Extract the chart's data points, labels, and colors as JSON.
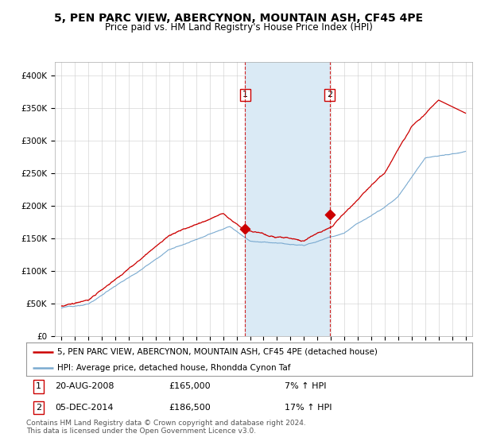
{
  "title": "5, PEN PARC VIEW, ABERCYNON, MOUNTAIN ASH, CF45 4PE",
  "subtitle": "Price paid vs. HM Land Registry's House Price Index (HPI)",
  "ylabel_ticks": [
    "£0",
    "£50K",
    "£100K",
    "£150K",
    "£200K",
    "£250K",
    "£300K",
    "£350K",
    "£400K"
  ],
  "ytick_values": [
    0,
    50000,
    100000,
    150000,
    200000,
    250000,
    300000,
    350000,
    400000
  ],
  "ylim": [
    0,
    420000
  ],
  "xlim_start": 1994.5,
  "xlim_end": 2025.5,
  "red_color": "#cc0000",
  "blue_color": "#7aaad0",
  "shade_color": "#daeaf5",
  "background_color": "#ffffff",
  "grid_color": "#cccccc",
  "purchase1_x": 2008.64,
  "purchase1_y": 165000,
  "purchase1_label": "1",
  "purchase1_date": "20-AUG-2008",
  "purchase1_price": "£165,000",
  "purchase1_hpi": "7% ↑ HPI",
  "purchase2_x": 2014.92,
  "purchase2_y": 186500,
  "purchase2_label": "2",
  "purchase2_date": "05-DEC-2014",
  "purchase2_price": "£186,500",
  "purchase2_hpi": "17% ↑ HPI",
  "legend_line1": "5, PEN PARC VIEW, ABERCYNON, MOUNTAIN ASH, CF45 4PE (detached house)",
  "legend_line2": "HPI: Average price, detached house, Rhondda Cynon Taf",
  "footnote": "Contains HM Land Registry data © Crown copyright and database right 2024.\nThis data is licensed under the Open Government Licence v3.0.",
  "title_fontsize": 10,
  "subtitle_fontsize": 8.5,
  "tick_fontsize": 7.5,
  "legend_fontsize": 7.5,
  "footnote_fontsize": 6.5
}
